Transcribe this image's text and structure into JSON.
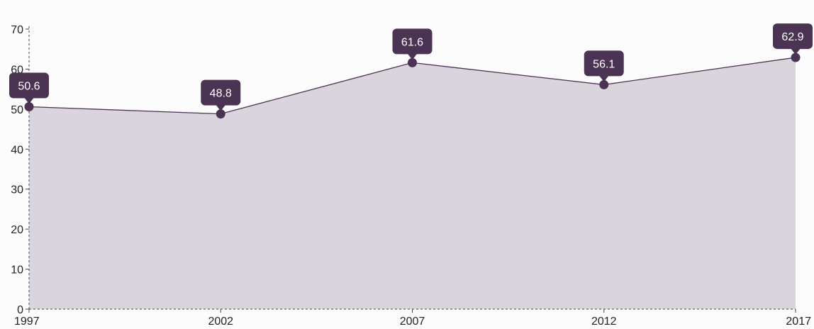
{
  "chart_data": {
    "type": "area",
    "x": [
      "1997",
      "2002",
      "2007",
      "2012",
      "2017"
    ],
    "series": [
      {
        "values": [
          50.6,
          48.8,
          61.6,
          56.1,
          62.9
        ]
      }
    ],
    "data_labels": [
      "50.6",
      "48.8",
      "61.6",
      "56.1",
      "62.9"
    ],
    "y_ticks": [
      0,
      10,
      20,
      30,
      40,
      50,
      60,
      70
    ],
    "ylim": [
      0,
      70
    ],
    "grid": false,
    "legend": "none"
  },
  "colors": {
    "area_fill": "#dad4dc",
    "line": "#4b3453",
    "marker": "#4b3453",
    "label_bg": "#4b3453",
    "label_text": "#ffffff",
    "axis": "#444444"
  }
}
